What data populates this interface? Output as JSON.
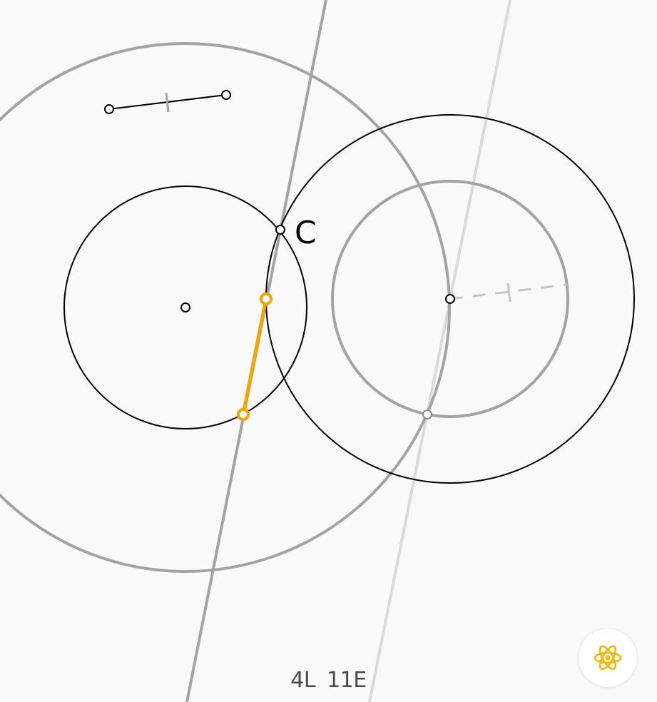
{
  "game": {
    "point_label": "C",
    "moves": {
      "lines": "4L",
      "euclid": "11E"
    }
  },
  "colors": {
    "background": "#f9f9f9",
    "construction": "#a3a3a3",
    "faint": "#dadada",
    "given": "#000000",
    "goal": "#f2a500"
  },
  "icons": {
    "hint": "atom-icon"
  }
}
